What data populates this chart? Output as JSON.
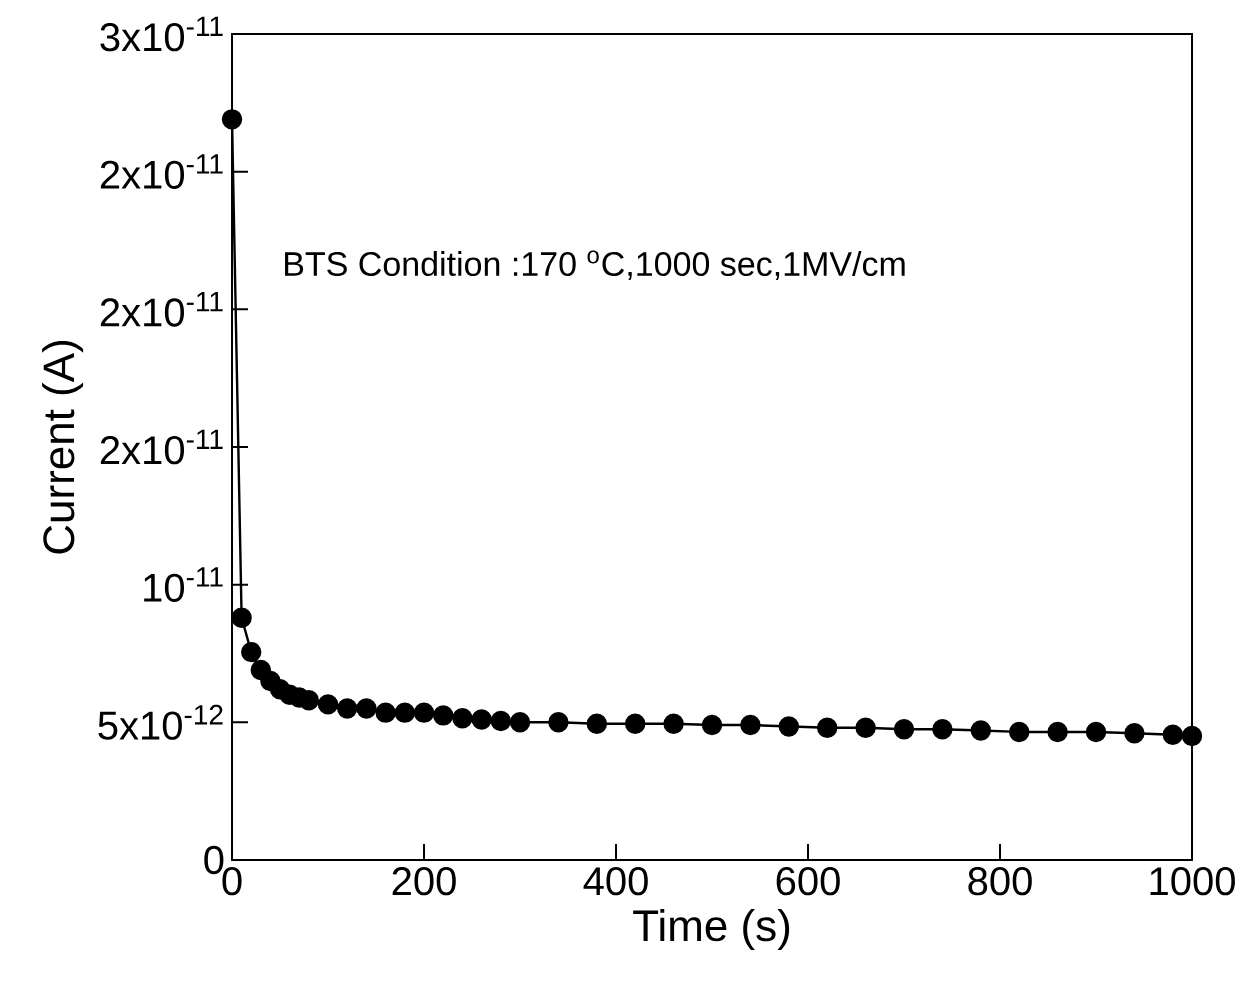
{
  "chart_data": {
    "type": "line",
    "xlabel": "Time (s)",
    "ylabel": "Current (A)",
    "annotations": [
      "BTS Condition :170 $^{o}$C,1000 sec,1MV/cm"
    ],
    "x": [
      0,
      10,
      20,
      30,
      40,
      50,
      60,
      70,
      80,
      100,
      120,
      140,
      160,
      180,
      200,
      220,
      240,
      260,
      280,
      300,
      340,
      380,
      420,
      460,
      500,
      540,
      580,
      620,
      660,
      700,
      740,
      780,
      820,
      860,
      900,
      940,
      980,
      1000
    ],
    "values": [
      2.69e-11,
      8.8e-12,
      7.55e-12,
      6.9e-12,
      6.5e-12,
      6.2e-12,
      6e-12,
      5.9e-12,
      5.8e-12,
      5.65e-12,
      5.5e-12,
      5.5e-12,
      5.35e-12,
      5.35e-12,
      5.35e-12,
      5.25e-12,
      5.15e-12,
      5.1e-12,
      5.05e-12,
      5e-12,
      5e-12,
      4.95e-12,
      4.95e-12,
      4.95e-12,
      4.9e-12,
      4.9e-12,
      4.85e-12,
      4.8e-12,
      4.8e-12,
      4.75e-12,
      4.75e-12,
      4.7e-12,
      4.65e-12,
      4.65e-12,
      4.65e-12,
      4.6e-12,
      4.55e-12,
      4.5e-12
    ],
    "color": "#000000",
    "marker": "circle",
    "line_style": "solid",
    "xlim": [
      0,
      1000
    ],
    "xticks": [
      0,
      200,
      400,
      600,
      800,
      1000
    ],
    "ylim": [
      0,
      3e-11
    ],
    "yticks": [
      0,
      {
        "value": 5e-12,
        "label": "5x10$^{-12}$"
      },
      {
        "value": 1e-11,
        "label": "10$^{-11}$"
      },
      {
        "value": 1.5e-11,
        "label": "2x10$^{-11}$"
      },
      {
        "value": 2e-11,
        "label": "2x10$^{-11}$"
      },
      {
        "value": 2.5e-11,
        "label": "2x10$^{-11}$"
      },
      {
        "value": 3e-11,
        "label": "3x10$^{-11}$"
      }
    ]
  }
}
